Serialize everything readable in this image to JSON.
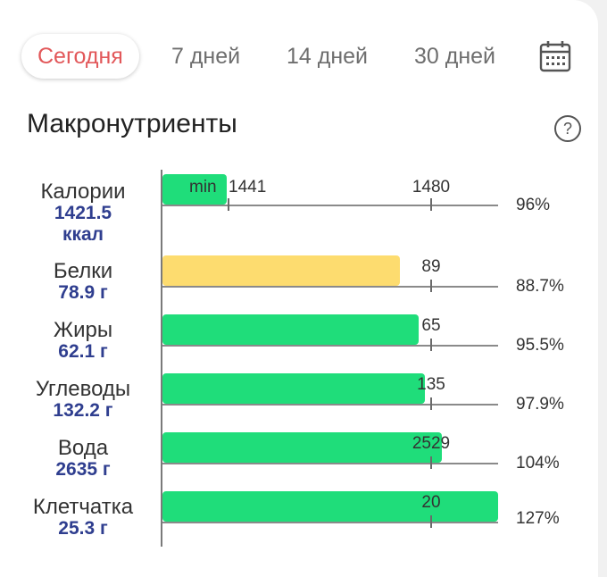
{
  "tabs": [
    {
      "label": "Сегодня",
      "active": true
    },
    {
      "label": "7 дней",
      "active": false
    },
    {
      "label": "14 дней",
      "active": false
    },
    {
      "label": "30 дней",
      "active": false
    }
  ],
  "calendar_icon": "calendar-icon",
  "section": {
    "title": "Макронутриенты",
    "help_icon": "question-circle-icon"
  },
  "colors": {
    "accent": "#e2585a",
    "bar_ok": "#1fdd7a",
    "bar_low": "#fddc6f",
    "value_text": "#2f3e8f"
  },
  "nutrients": [
    {
      "name": "Калории",
      "value": "1421.5",
      "unit": "ккал",
      "min_label": "min",
      "min_value": "1441",
      "target": "1480",
      "percent": "96%",
      "status": "ok"
    },
    {
      "name": "Белки",
      "value_text": "78.9 г",
      "target": "89",
      "percent": "88.7%",
      "status": "low"
    },
    {
      "name": "Жиры",
      "value_text": "62.1 г",
      "target": "65",
      "percent": "95.5%",
      "status": "ok"
    },
    {
      "name": "Углеводы",
      "value_text": "132.2 г",
      "target": "135",
      "percent": "97.9%",
      "status": "ok"
    },
    {
      "name": "Вода",
      "value_text": "2635 г",
      "target": "2529",
      "percent": "104%",
      "status": "ok"
    },
    {
      "name": "Клетчатка",
      "value_text": "25.3 г",
      "target": "20",
      "percent": "127%",
      "status": "ok"
    }
  ]
}
